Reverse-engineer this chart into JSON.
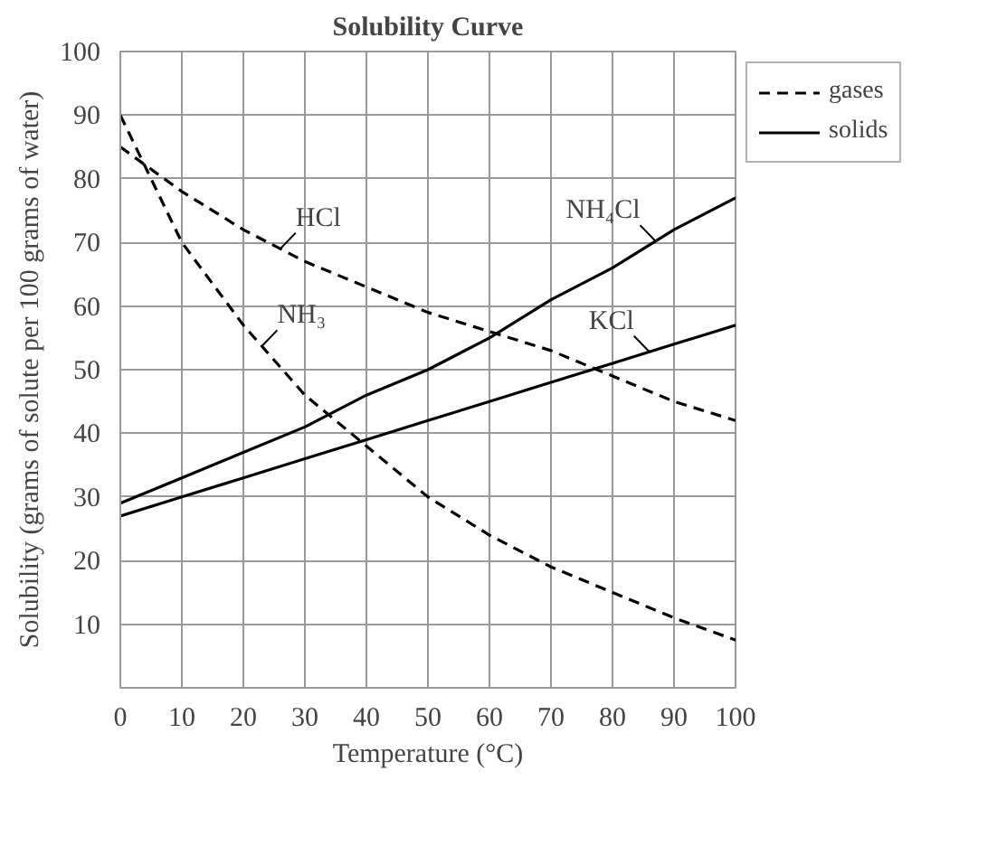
{
  "chart_data": {
    "type": "line",
    "title": "Solubility Curve",
    "xlabel": "Temperature (°C)",
    "ylabel": "Solubility (grams of solute per 100 grams of water)",
    "x": [
      0,
      10,
      20,
      30,
      40,
      50,
      60,
      70,
      80,
      90,
      100
    ],
    "series": [
      {
        "name": "HCl",
        "color": "#000000",
        "line_style": "dashed",
        "values": [
          85,
          78,
          72,
          67,
          63,
          59,
          56,
          53,
          49,
          45,
          42
        ]
      },
      {
        "name": "NH₃",
        "color": "#000000",
        "line_style": "dashed",
        "values": [
          90,
          70,
          57,
          46,
          38,
          30,
          24,
          19,
          15,
          11,
          7.5
        ]
      },
      {
        "name": "NH₄Cl",
        "color": "#000000",
        "line_style": "solid",
        "values": [
          29,
          33,
          37,
          41,
          46,
          50,
          55,
          61,
          66,
          72,
          77
        ]
      },
      {
        "name": "KCl",
        "color": "#000000",
        "line_style": "solid",
        "values": [
          27,
          30,
          33,
          36,
          39,
          42,
          45,
          48,
          51,
          54,
          57
        ]
      }
    ],
    "annotations": [
      "gases",
      "solids"
    ],
    "xlim": [
      0,
      100
    ],
    "ylim": [
      0,
      100
    ],
    "xticks": [
      0,
      10,
      20,
      30,
      40,
      50,
      60,
      70,
      80,
      90,
      100
    ],
    "yticks": [
      10,
      20,
      30,
      40,
      50,
      60,
      70,
      80,
      90,
      100
    ],
    "grid": true,
    "legend": "right",
    "marker": "none"
  }
}
